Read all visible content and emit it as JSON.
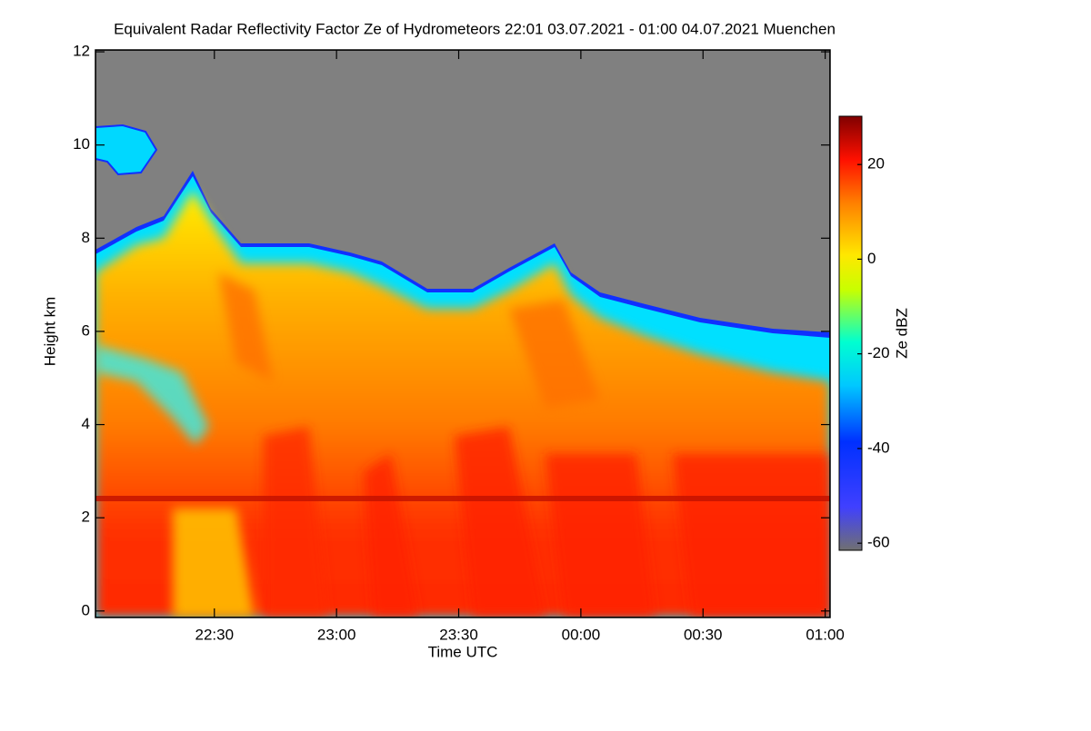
{
  "chart_data": {
    "type": "heatmap",
    "title": "Equivalent Radar Reflectivity Factor Ze of Hydrometeors   22:01 03.07.2021 - 01:00 04.07.2021 Muenchen",
    "x_label": "Time UTC",
    "y_label": "Height km",
    "colorbar_label": "Ze dBZ",
    "xlim": [
      0.8,
      181.2
    ],
    "xticks": [
      {
        "value": 30,
        "label": "22:30"
      },
      {
        "value": 60,
        "label": "23:00"
      },
      {
        "value": 90,
        "label": "23:30"
      },
      {
        "value": 120,
        "label": "00:00"
      },
      {
        "value": 150,
        "label": "00:30"
      },
      {
        "value": 180,
        "label": "01:00"
      }
    ],
    "ylim": [
      -0.14,
      12.04
    ],
    "yticks": [
      0,
      2,
      4,
      6,
      8,
      10,
      12
    ],
    "zlim": [
      -61.5,
      30.2
    ],
    "zticks": [
      -60,
      -40,
      -20,
      0,
      20
    ]
  }
}
